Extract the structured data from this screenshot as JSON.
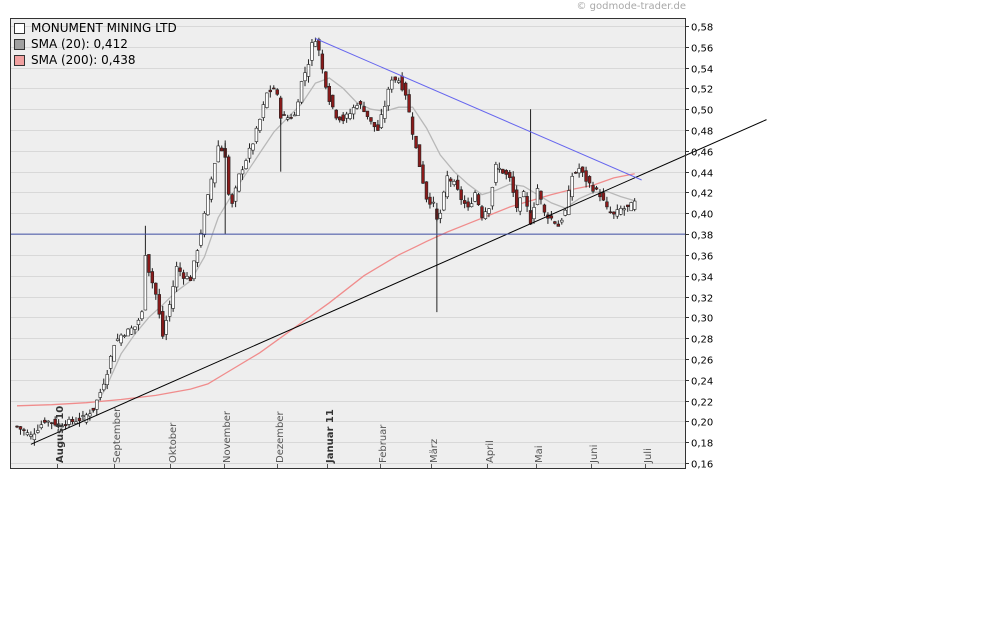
{
  "watermark": "© godmode-trader.de",
  "legend": [
    {
      "label": "MONUMENT MINING LTD",
      "color": "#ffffff"
    },
    {
      "label": "SMA (20): 0,412",
      "color": "#a0a0a0"
    },
    {
      "label": "SMA (200): 0,438",
      "color": "#f0a0a0"
    }
  ],
  "colors": {
    "background": "#eeeeee",
    "grid": "#d8d8d8",
    "up_candle": "#ffffff",
    "down_candle": "#8b1a1a",
    "sma20": "#b8b8b8",
    "sma200": "#f08c8c",
    "resistance_line": "#6666ee",
    "horizontal_line": "#4455aa",
    "support_line": "#000000"
  },
  "chart_data": {
    "type": "candlestick",
    "title": "MONUMENT MINING LTD",
    "y_axis_position": "right",
    "ylim": [
      0.16,
      0.59
    ],
    "y_ticks": [
      "0,58",
      "0,56",
      "0,54",
      "0,52",
      "0,50",
      "0,48",
      "0,46",
      "0,44",
      "0,42",
      "0,40",
      "0,38",
      "0,36",
      "0,34",
      "0,32",
      "0,30",
      "0,28",
      "0,26",
      "0,24",
      "0,22",
      "0,20",
      "0,18",
      "0,16"
    ],
    "y_tick_values": [
      0.58,
      0.56,
      0.54,
      0.52,
      0.5,
      0.48,
      0.46,
      0.44,
      0.42,
      0.4,
      0.38,
      0.36,
      0.34,
      0.32,
      0.3,
      0.28,
      0.26,
      0.24,
      0.22,
      0.2,
      0.18,
      0.16
    ],
    "months": [
      {
        "label": "August 10",
        "bold": true
      },
      {
        "label": "September",
        "bold": false
      },
      {
        "label": "Oktober",
        "bold": false
      },
      {
        "label": "November",
        "bold": false
      },
      {
        "label": "Dezember",
        "bold": false
      },
      {
        "label": "Januar 11",
        "bold": true
      },
      {
        "label": "Februar",
        "bold": false
      },
      {
        "label": "März",
        "bold": false
      },
      {
        "label": "April",
        "bold": false
      },
      {
        "label": "Mai",
        "bold": false
      },
      {
        "label": "Juni",
        "bold": false
      },
      {
        "label": "Juli",
        "bold": false
      }
    ],
    "close_path": [
      [
        0,
        0.195
      ],
      [
        4,
        0.186
      ],
      [
        8,
        0.201
      ],
      [
        12,
        0.197
      ],
      [
        16,
        0.2
      ],
      [
        19,
        0.203
      ],
      [
        22,
        0.212
      ],
      [
        24,
        0.228
      ],
      [
        26,
        0.248
      ],
      [
        28,
        0.275
      ],
      [
        30,
        0.283
      ],
      [
        32,
        0.287
      ],
      [
        34,
        0.291
      ],
      [
        36,
        0.304
      ],
      [
        37,
        0.362
      ],
      [
        38,
        0.345
      ],
      [
        40,
        0.322
      ],
      [
        41,
        0.302
      ],
      [
        42,
        0.282
      ],
      [
        44,
        0.312
      ],
      [
        46,
        0.348
      ],
      [
        48,
        0.34
      ],
      [
        50,
        0.337
      ],
      [
        52,
        0.366
      ],
      [
        54,
        0.398
      ],
      [
        56,
        0.433
      ],
      [
        58,
        0.465
      ],
      [
        60,
        0.456
      ],
      [
        61,
        0.418
      ],
      [
        62,
        0.408
      ],
      [
        64,
        0.436
      ],
      [
        66,
        0.452
      ],
      [
        68,
        0.468
      ],
      [
        70,
        0.49
      ],
      [
        72,
        0.515
      ],
      [
        74,
        0.52
      ],
      [
        75,
        0.512
      ],
      [
        76,
        0.494
      ],
      [
        78,
        0.492
      ],
      [
        80,
        0.494
      ],
      [
        82,
        0.526
      ],
      [
        84,
        0.545
      ],
      [
        85,
        0.562
      ],
      [
        86,
        0.568
      ],
      [
        87,
        0.556
      ],
      [
        88,
        0.538
      ],
      [
        90,
        0.51
      ],
      [
        92,
        0.494
      ],
      [
        94,
        0.49
      ],
      [
        96,
        0.496
      ],
      [
        98,
        0.506
      ],
      [
        100,
        0.5
      ],
      [
        102,
        0.487
      ],
      [
        104,
        0.48
      ],
      [
        106,
        0.504
      ],
      [
        108,
        0.53
      ],
      [
        110,
        0.528
      ],
      [
        112,
        0.515
      ],
      [
        114,
        0.478
      ],
      [
        116,
        0.446
      ],
      [
        118,
        0.415
      ],
      [
        120,
        0.408
      ],
      [
        121,
        0.393
      ],
      [
        122,
        0.4
      ],
      [
        124,
        0.435
      ],
      [
        126,
        0.428
      ],
      [
        128,
        0.414
      ],
      [
        130,
        0.404
      ],
      [
        132,
        0.42
      ],
      [
        134,
        0.398
      ],
      [
        136,
        0.407
      ],
      [
        138,
        0.445
      ],
      [
        140,
        0.44
      ],
      [
        142,
        0.433
      ],
      [
        144,
        0.406
      ],
      [
        146,
        0.418
      ],
      [
        148,
        0.392
      ],
      [
        150,
        0.424
      ],
      [
        152,
        0.4
      ],
      [
        154,
        0.395
      ],
      [
        156,
        0.388
      ],
      [
        158,
        0.402
      ],
      [
        160,
        0.436
      ],
      [
        162,
        0.443
      ],
      [
        164,
        0.432
      ],
      [
        166,
        0.424
      ],
      [
        168,
        0.418
      ],
      [
        170,
        0.404
      ],
      [
        172,
        0.398
      ],
      [
        174,
        0.404
      ],
      [
        176,
        0.405
      ],
      [
        178,
        0.41
      ]
    ],
    "sma20": [
      [
        12,
        0.196
      ],
      [
        18,
        0.198
      ],
      [
        22,
        0.21
      ],
      [
        26,
        0.235
      ],
      [
        30,
        0.265
      ],
      [
        34,
        0.284
      ],
      [
        38,
        0.3
      ],
      [
        42,
        0.312
      ],
      [
        46,
        0.325
      ],
      [
        50,
        0.335
      ],
      [
        54,
        0.358
      ],
      [
        58,
        0.396
      ],
      [
        62,
        0.418
      ],
      [
        66,
        0.438
      ],
      [
        70,
        0.458
      ],
      [
        74,
        0.478
      ],
      [
        78,
        0.492
      ],
      [
        82,
        0.505
      ],
      [
        86,
        0.525
      ],
      [
        90,
        0.53
      ],
      [
        94,
        0.52
      ],
      [
        98,
        0.506
      ],
      [
        102,
        0.5
      ],
      [
        106,
        0.498
      ],
      [
        110,
        0.502
      ],
      [
        114,
        0.502
      ],
      [
        118,
        0.482
      ],
      [
        122,
        0.456
      ],
      [
        126,
        0.44
      ],
      [
        130,
        0.428
      ],
      [
        134,
        0.418
      ],
      [
        138,
        0.422
      ],
      [
        142,
        0.428
      ],
      [
        146,
        0.426
      ],
      [
        150,
        0.418
      ],
      [
        154,
        0.41
      ],
      [
        158,
        0.405
      ],
      [
        162,
        0.414
      ],
      [
        166,
        0.42
      ],
      [
        170,
        0.421
      ],
      [
        174,
        0.416
      ],
      [
        178,
        0.412
      ]
    ],
    "sma200": [
      [
        0,
        0.215
      ],
      [
        10,
        0.216
      ],
      [
        20,
        0.218
      ],
      [
        30,
        0.221
      ],
      [
        40,
        0.225
      ],
      [
        50,
        0.231
      ],
      [
        55,
        0.236
      ],
      [
        60,
        0.246
      ],
      [
        70,
        0.266
      ],
      [
        80,
        0.29
      ],
      [
        90,
        0.314
      ],
      [
        100,
        0.34
      ],
      [
        110,
        0.36
      ],
      [
        115,
        0.368
      ],
      [
        118,
        0.373
      ],
      [
        124,
        0.382
      ],
      [
        130,
        0.39
      ],
      [
        136,
        0.398
      ],
      [
        142,
        0.406
      ],
      [
        148,
        0.412
      ],
      [
        154,
        0.418
      ],
      [
        160,
        0.423
      ],
      [
        166,
        0.427
      ],
      [
        172,
        0.434
      ],
      [
        178,
        0.438
      ]
    ],
    "trendlines": [
      {
        "name": "support",
        "from": [
          4,
          0.178
        ],
        "to": [
          216,
          0.49
        ]
      },
      {
        "name": "resistance",
        "from": [
          86,
          0.568
        ],
        "to": [
          180,
          0.432
        ]
      },
      {
        "name": "horizontal",
        "value": 0.38
      }
    ],
    "grid": true
  }
}
